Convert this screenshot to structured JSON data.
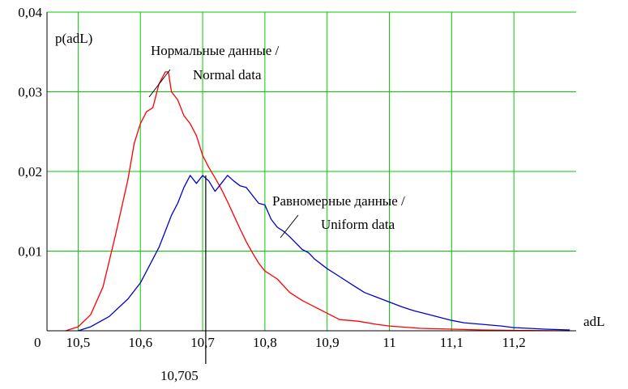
{
  "chart_data": {
    "type": "line",
    "title": "",
    "xlabel": "adL",
    "ylabel": "p(adL)",
    "origin_label": "0",
    "xlim": [
      10.45,
      11.3
    ],
    "ylim": [
      0,
      0.04
    ],
    "x_ticks": [
      {
        "value": 10.5,
        "label": "10,5"
      },
      {
        "value": 10.6,
        "label": "10,6"
      },
      {
        "value": 10.7,
        "label": "10,7"
      },
      {
        "value": 10.8,
        "label": "10,8"
      },
      {
        "value": 10.9,
        "label": "10,9"
      },
      {
        "value": 11.0,
        "label": "11"
      },
      {
        "value": 11.1,
        "label": "11,1"
      },
      {
        "value": 11.2,
        "label": "11,2"
      }
    ],
    "y_ticks": [
      {
        "value": 0.01,
        "label": "0,01"
      },
      {
        "value": 0.02,
        "label": "0,02"
      },
      {
        "value": 0.03,
        "label": "0,03"
      },
      {
        "value": 0.04,
        "label": "0,04"
      }
    ],
    "grid": true,
    "grid_color": "#00cc00",
    "marker": {
      "x": 10.705,
      "label": "10,705"
    },
    "annotations": [
      {
        "lines": [
          "Нормальные данные /",
          "Normal data"
        ],
        "series": "normal"
      },
      {
        "lines": [
          "Равномерные данные /",
          "Uniform data"
        ],
        "series": "uniform"
      }
    ],
    "series": [
      {
        "id": "normal",
        "color": "#ff0000",
        "points": [
          [
            10.48,
            0
          ],
          [
            10.5,
            0.0005
          ],
          [
            10.52,
            0.002
          ],
          [
            10.54,
            0.0055
          ],
          [
            10.56,
            0.012
          ],
          [
            10.58,
            0.019
          ],
          [
            10.59,
            0.0235
          ],
          [
            10.6,
            0.026
          ],
          [
            10.61,
            0.0275
          ],
          [
            10.62,
            0.028
          ],
          [
            10.63,
            0.031
          ],
          [
            10.64,
            0.0325
          ],
          [
            10.645,
            0.0325
          ],
          [
            10.65,
            0.03
          ],
          [
            10.66,
            0.029
          ],
          [
            10.67,
            0.027
          ],
          [
            10.68,
            0.026
          ],
          [
            10.69,
            0.0245
          ],
          [
            10.7,
            0.022
          ],
          [
            10.71,
            0.0205
          ],
          [
            10.72,
            0.0192
          ],
          [
            10.73,
            0.0178
          ],
          [
            10.74,
            0.0162
          ],
          [
            10.75,
            0.0145
          ],
          [
            10.76,
            0.0128
          ],
          [
            10.77,
            0.0112
          ],
          [
            10.78,
            0.0098
          ],
          [
            10.79,
            0.0085
          ],
          [
            10.8,
            0.0075
          ],
          [
            10.82,
            0.0065
          ],
          [
            10.84,
            0.0048
          ],
          [
            10.86,
            0.0038
          ],
          [
            10.88,
            0.003
          ],
          [
            10.9,
            0.0022
          ],
          [
            10.92,
            0.0014
          ],
          [
            10.95,
            0.0012
          ],
          [
            10.98,
            0.0008
          ],
          [
            11.0,
            0.0006
          ],
          [
            11.05,
            0.0003
          ],
          [
            11.1,
            0.0002
          ],
          [
            11.15,
            0.0001
          ],
          [
            11.2,
            5e-05
          ],
          [
            11.29,
            0
          ]
        ]
      },
      {
        "id": "uniform",
        "color": "#0000cc",
        "points": [
          [
            10.5,
            0
          ],
          [
            10.52,
            0.0005
          ],
          [
            10.55,
            0.0018
          ],
          [
            10.58,
            0.004
          ],
          [
            10.6,
            0.006
          ],
          [
            10.62,
            0.009
          ],
          [
            10.63,
            0.0105
          ],
          [
            10.64,
            0.0125
          ],
          [
            10.65,
            0.0145
          ],
          [
            10.66,
            0.016
          ],
          [
            10.67,
            0.018
          ],
          [
            10.68,
            0.0195
          ],
          [
            10.69,
            0.0185
          ],
          [
            10.7,
            0.0195
          ],
          [
            10.71,
            0.0188
          ],
          [
            10.72,
            0.0175
          ],
          [
            10.73,
            0.0185
          ],
          [
            10.74,
            0.0195
          ],
          [
            10.75,
            0.0188
          ],
          [
            10.76,
            0.0182
          ],
          [
            10.77,
            0.018
          ],
          [
            10.78,
            0.017
          ],
          [
            10.79,
            0.016
          ],
          [
            10.8,
            0.0158
          ],
          [
            10.81,
            0.014
          ],
          [
            10.82,
            0.013
          ],
          [
            10.83,
            0.0125
          ],
          [
            10.84,
            0.0118
          ],
          [
            10.85,
            0.011
          ],
          [
            10.86,
            0.0102
          ],
          [
            10.87,
            0.0098
          ],
          [
            10.88,
            0.009
          ],
          [
            10.9,
            0.0078
          ],
          [
            10.92,
            0.0068
          ],
          [
            10.94,
            0.0058
          ],
          [
            10.96,
            0.0048
          ],
          [
            10.98,
            0.0042
          ],
          [
            11.0,
            0.0036
          ],
          [
            11.02,
            0.003
          ],
          [
            11.04,
            0.0025
          ],
          [
            11.06,
            0.0021
          ],
          [
            11.08,
            0.0017
          ],
          [
            11.1,
            0.0013
          ],
          [
            11.12,
            0.001
          ],
          [
            11.15,
            0.0008
          ],
          [
            11.18,
            0.0006
          ],
          [
            11.2,
            0.0004
          ],
          [
            11.25,
            0.0002
          ],
          [
            11.29,
            0.0001
          ]
        ]
      }
    ]
  }
}
